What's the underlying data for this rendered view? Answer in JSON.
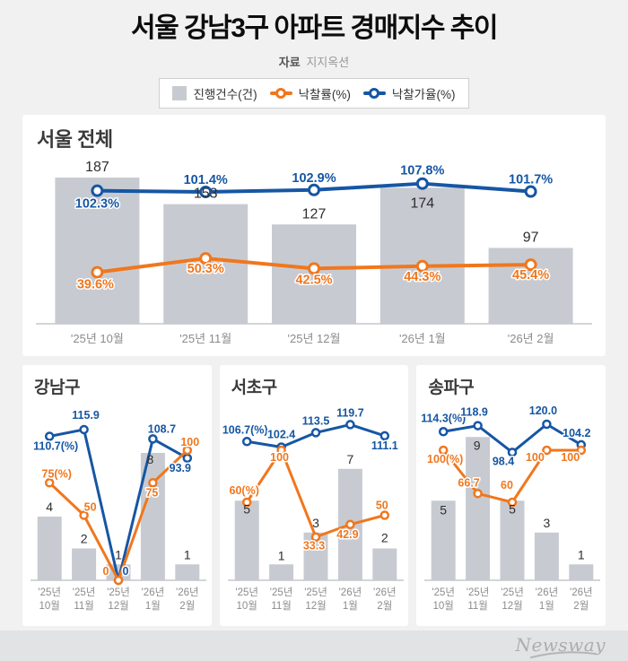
{
  "header": {
    "title": "서울 강남3구 아파트 경매지수 추이",
    "source_label": "자료",
    "source_value": "지지옥션"
  },
  "legend": {
    "items": [
      {
        "label": "진행건수(건)",
        "marker": "gray-square"
      },
      {
        "label": "낙찰률(%)",
        "marker": "orange-line-dot"
      },
      {
        "label": "낙찰가율(%)",
        "marker": "blue-line-dot"
      }
    ]
  },
  "colors": {
    "bar": "#C7CBD1",
    "bar_label": "#2E2E2E",
    "orange": "#F0771E",
    "blue": "#1656A4",
    "axis_label": "#8B8B8B",
    "axis_line": "#C5C7CA",
    "page_bg": "#F1F1F2",
    "panel_bg": "#FFFFFF",
    "footer_bg": "#E2E3E5",
    "logo_gray": "#ADADAD"
  },
  "footer": {
    "logo": "Newsway"
  },
  "chart_data": [
    {
      "id": "seoul-total",
      "type": "bar",
      "title": "서울 전체",
      "categories": [
        "'25년 10월",
        "'25년 11월",
        "'25년 12월",
        "'26년 1월",
        "'26년 2월"
      ],
      "bars": {
        "name": "진행건수(건)",
        "values": [
          187,
          153,
          127,
          174,
          97
        ],
        "labels": [
          "187",
          "153",
          "127",
          "174",
          "97"
        ]
      },
      "series": [
        {
          "name": "낙찰률(%)",
          "color_key": "orange",
          "values": [
            39.6,
            50.3,
            42.5,
            44.3,
            45.4
          ],
          "labels": [
            "39.6%",
            "50.3%",
            "42.5%",
            "44.3%",
            "45.4%"
          ]
        },
        {
          "name": "낙찰가율(%)",
          "color_key": "blue",
          "values": [
            102.3,
            101.4,
            102.9,
            107.8,
            101.7
          ],
          "labels": [
            "102.3%",
            "101.4%",
            "102.9%",
            "107.8%",
            "101.7%"
          ]
        }
      ],
      "ylim_bars": [
        0,
        230
      ],
      "ylim_pct": [
        0,
        138
      ],
      "grid": false,
      "legend_position": "top"
    },
    {
      "id": "gangnam",
      "type": "bar",
      "title": "강남구",
      "categories": [
        "'25년 10월",
        "'25년 11월",
        "'25년 12월",
        "'26년 1월",
        "'26년 2월"
      ],
      "bars": {
        "name": "진행건수(건)",
        "values": [
          4,
          2,
          1,
          8,
          1
        ],
        "labels": [
          "4",
          "2",
          "1",
          "8",
          "1"
        ]
      },
      "series": [
        {
          "name": "낙찰률(%)",
          "color_key": "orange",
          "values": [
            75,
            50,
            0,
            75,
            100
          ],
          "labels": [
            "75(%)",
            "50",
            "0",
            "75",
            "100"
          ]
        },
        {
          "name": "낙찰가율(%)",
          "color_key": "blue",
          "values": [
            110.7,
            115.9,
            0,
            108.7,
            93.9
          ],
          "labels": [
            "110.7(%)",
            "115.9",
            "0",
            "108.7",
            "93.9"
          ]
        }
      ],
      "ylim_bars": [
        0,
        11.4
      ],
      "ylim_pct": [
        0,
        140
      ],
      "grid": false
    },
    {
      "id": "seocho",
      "type": "bar",
      "title": "서초구",
      "categories": [
        "'25년 10월",
        "'25년 11월",
        "'25년 12월",
        "'26년 1월",
        "'26년 2월"
      ],
      "bars": {
        "name": "진행건수(건)",
        "values": [
          5,
          1,
          3,
          7,
          2
        ],
        "labels": [
          "5",
          "1",
          "3",
          "7",
          "2"
        ]
      },
      "series": [
        {
          "name": "낙찰률(%)",
          "color_key": "orange",
          "values": [
            60,
            100,
            33.3,
            42.9,
            50
          ],
          "labels": [
            "60(%)",
            "100",
            "33.3",
            "42.9",
            "50"
          ]
        },
        {
          "name": "낙찰가율(%)",
          "color_key": "blue",
          "values": [
            106.7,
            102.4,
            113.5,
            119.7,
            111.1
          ],
          "labels": [
            "106.7(%)",
            "102.4",
            "113.5",
            "119.7",
            "111.1"
          ]
        }
      ],
      "ylim_bars": [
        0,
        11.4
      ],
      "ylim_pct": [
        0,
        140
      ],
      "grid": false
    },
    {
      "id": "songpa",
      "type": "bar",
      "title": "송파구",
      "categories": [
        "'25년 10월",
        "'25년 11월",
        "'25년 12월",
        "'26년 1월",
        "'26년 2월"
      ],
      "bars": {
        "name": "진행건수(건)",
        "values": [
          5,
          9,
          5,
          3,
          1
        ],
        "labels": [
          "5",
          "9",
          "5",
          "3",
          "1"
        ]
      },
      "series": [
        {
          "name": "낙찰률(%)",
          "color_key": "orange",
          "values": [
            100,
            66.7,
            60,
            100,
            100
          ],
          "labels": [
            "100(%)",
            "66.7",
            "60",
            "100",
            "100"
          ]
        },
        {
          "name": "낙찰가율(%)",
          "color_key": "blue",
          "values": [
            114.3,
            118.9,
            98.4,
            120.0,
            104.2
          ],
          "labels": [
            "114.3(%)",
            "118.9",
            "98.4",
            "120.0",
            "104.2"
          ]
        }
      ],
      "ylim_bars": [
        0,
        11.4
      ],
      "ylim_pct": [
        0,
        140
      ],
      "grid": false
    }
  ]
}
